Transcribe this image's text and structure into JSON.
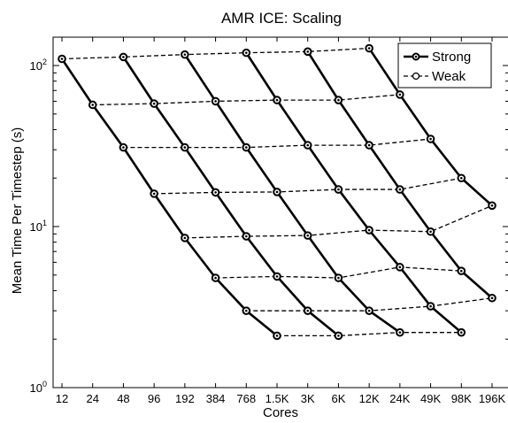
{
  "chart_data": {
    "type": "line",
    "title": "AMR ICE: Scaling",
    "xlabel": "Cores",
    "ylabel": "Mean Time Per Timestep (s)",
    "x_scale": "log2",
    "y_scale": "log",
    "ylim": [
      1,
      150
    ],
    "grid": false,
    "legend_position": "top-right",
    "categories": [
      "12",
      "24",
      "48",
      "96",
      "192",
      "384",
      "768",
      "1.5K",
      "3K",
      "6K",
      "12K",
      "24K",
      "49K",
      "98K",
      "196K"
    ],
    "y_tick_labels": [
      "10^0",
      "10^1",
      "10^2"
    ],
    "legend": [
      {
        "label": "Strong",
        "style": "solid",
        "marker": "circle-filled"
      },
      {
        "label": "Weak",
        "style": "dashed",
        "marker": "circle-open"
      }
    ],
    "strong_series": [
      {
        "x": [
          "12",
          "24",
          "48",
          "96",
          "192",
          "384",
          "768",
          "1.5K"
        ],
        "y": [
          110,
          57,
          31,
          16,
          8.5,
          4.8,
          3.0,
          2.1
        ]
      },
      {
        "x": [
          "48",
          "96",
          "192",
          "384",
          "768",
          "1.5K",
          "3K",
          "6K"
        ],
        "y": [
          113,
          58,
          31,
          16.3,
          8.7,
          4.9,
          3.0,
          2.1
        ]
      },
      {
        "x": [
          "192",
          "384",
          "768",
          "1.5K",
          "3K",
          "6K",
          "12K",
          "24K"
        ],
        "y": [
          117,
          60,
          31,
          16.4,
          8.8,
          4.8,
          3.0,
          2.2
        ]
      },
      {
        "x": [
          "768",
          "1.5K",
          "3K",
          "6K",
          "12K",
          "24K",
          "49K",
          "98K"
        ],
        "y": [
          120,
          61,
          32,
          17,
          9.5,
          5.6,
          3.2,
          2.2
        ]
      },
      {
        "x": [
          "3K",
          "6K",
          "12K",
          "24K",
          "49K",
          "98K",
          "196K"
        ],
        "y": [
          122,
          61,
          32,
          17,
          9.3,
          5.3,
          3.6
        ]
      },
      {
        "x": [
          "12K",
          "24K",
          "49K",
          "98K",
          "196K"
        ],
        "y": [
          128,
          66,
          35,
          20,
          13.5
        ]
      }
    ],
    "weak_series": [
      {
        "x": [
          "12",
          "48",
          "192",
          "768",
          "3K",
          "12K"
        ],
        "y": [
          110,
          113,
          117,
          120,
          122,
          128
        ]
      },
      {
        "x": [
          "24",
          "96",
          "384",
          "1.5K",
          "6K",
          "24K"
        ],
        "y": [
          57,
          58,
          60,
          61,
          61,
          66
        ]
      },
      {
        "x": [
          "48",
          "192",
          "768",
          "3K",
          "12K",
          "49K"
        ],
        "y": [
          31,
          31,
          31,
          32,
          32,
          35
        ]
      },
      {
        "x": [
          "96",
          "384",
          "1.5K",
          "6K",
          "24K",
          "98K"
        ],
        "y": [
          16,
          16.3,
          16.4,
          17,
          17,
          20
        ]
      },
      {
        "x": [
          "192",
          "768",
          "3K",
          "12K",
          "49K",
          "196K"
        ],
        "y": [
          8.5,
          8.7,
          8.8,
          9.5,
          9.3,
          13.5
        ]
      },
      {
        "x": [
          "384",
          "1.5K",
          "6K",
          "24K",
          "98K"
        ],
        "y": [
          4.8,
          4.9,
          4.8,
          5.6,
          5.3
        ]
      },
      {
        "x": [
          "768",
          "3K",
          "12K",
          "49K",
          "196K"
        ],
        "y": [
          3.0,
          3.0,
          3.0,
          3.2,
          3.6
        ]
      },
      {
        "x": [
          "1.5K",
          "6K",
          "24K",
          "98K"
        ],
        "y": [
          2.1,
          2.1,
          2.2,
          2.2
        ]
      }
    ]
  }
}
